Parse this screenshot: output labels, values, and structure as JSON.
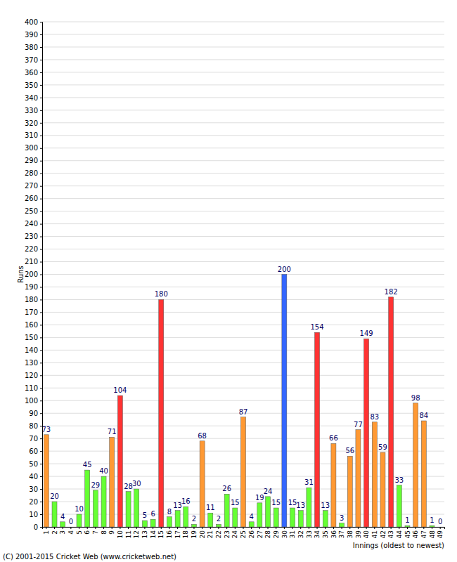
{
  "chart_data": {
    "type": "bar",
    "x_label": "Innings (oldest to newest)",
    "y_label": "Runs",
    "annotations": [
      "(C) 2001-2015 Cricket Web (www.cricketweb.net)"
    ],
    "categories": [
      "1",
      "2",
      "3",
      "4",
      "5",
      "6",
      "7",
      "8",
      "9",
      "10",
      "11",
      "12",
      "13",
      "14",
      "15",
      "16",
      "17",
      "18",
      "19",
      "20",
      "21",
      "22",
      "23",
      "24",
      "25",
      "26",
      "27",
      "28",
      "29",
      "30",
      "31",
      "32",
      "33",
      "34",
      "35",
      "36",
      "37",
      "38",
      "39",
      "40",
      "41",
      "42",
      "43",
      "44",
      "45",
      "46",
      "47",
      "48",
      "49"
    ],
    "values": [
      73,
      20,
      4,
      0,
      10,
      45,
      29,
      40,
      71,
      104,
      28,
      30,
      5,
      6,
      180,
      8,
      13,
      16,
      2,
      68,
      11,
      2,
      26,
      15,
      87,
      4,
      19,
      24,
      15,
      200,
      15,
      13,
      31,
      154,
      13,
      66,
      3,
      56,
      77,
      149,
      83,
      59,
      182,
      33,
      1,
      98,
      84,
      1,
      0
    ],
    "colors": [
      "#ff9933",
      "#66ff33",
      "#66ff33",
      "#66ff33",
      "#66ff33",
      "#66ff33",
      "#66ff33",
      "#66ff33",
      "#ff9933",
      "#ff3333",
      "#66ff33",
      "#66ff33",
      "#66ff33",
      "#66ff33",
      "#ff3333",
      "#66ff33",
      "#66ff33",
      "#66ff33",
      "#66ff33",
      "#ff9933",
      "#66ff33",
      "#66ff33",
      "#66ff33",
      "#66ff33",
      "#ff9933",
      "#66ff33",
      "#66ff33",
      "#66ff33",
      "#66ff33",
      "#3366ff",
      "#66ff33",
      "#66ff33",
      "#66ff33",
      "#ff3333",
      "#66ff33",
      "#ff9933",
      "#66ff33",
      "#ff9933",
      "#ff9933",
      "#ff3333",
      "#ff9933",
      "#ff9933",
      "#ff3333",
      "#66ff33",
      "#66ff33",
      "#ff9933",
      "#ff9933",
      "#66ff33",
      "#66ff33"
    ],
    "ylim": [
      0,
      400
    ],
    "yticks": [
      0,
      10,
      20,
      30,
      40,
      50,
      60,
      70,
      80,
      90,
      100,
      110,
      120,
      130,
      140,
      150,
      160,
      170,
      180,
      190,
      200,
      210,
      220,
      230,
      240,
      250,
      260,
      270,
      280,
      290,
      300,
      310,
      320,
      330,
      340,
      350,
      360,
      370,
      380,
      390,
      400
    ],
    "grid": true,
    "data_labels": true
  }
}
